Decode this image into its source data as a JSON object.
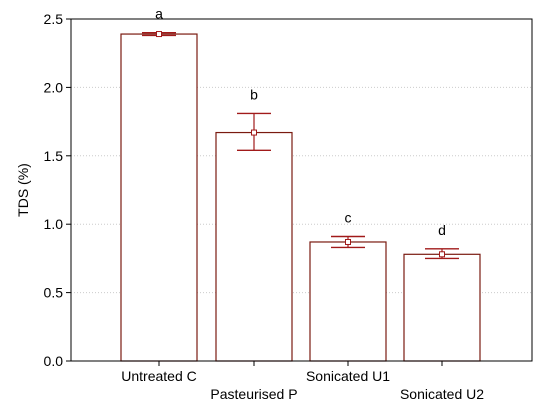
{
  "chart_data": {
    "type": "bar",
    "ylabel": "TDS (%)",
    "xlabel": "",
    "ylim": [
      0,
      2.5
    ],
    "yticks": [
      "0.0",
      "0.5",
      "1.0",
      "1.5",
      "2.0",
      "2.5"
    ],
    "grid": true,
    "categories": [
      "Untreated C",
      "Pasteurised P",
      "Sonicated U1",
      "Sonicated U2"
    ],
    "values": [
      2.39,
      1.67,
      0.87,
      0.78
    ],
    "error_low": [
      2.38,
      1.54,
      0.83,
      0.75
    ],
    "error_high": [
      2.4,
      1.81,
      0.91,
      0.82
    ],
    "significance_letters": [
      "a",
      "b",
      "c",
      "d"
    ],
    "colors": {
      "bar_stroke": "#7a1a10",
      "bar_fill": "#ffffff",
      "error_bar": "#a11a1a",
      "grid": "#cccccc",
      "axis": "#000000"
    }
  }
}
